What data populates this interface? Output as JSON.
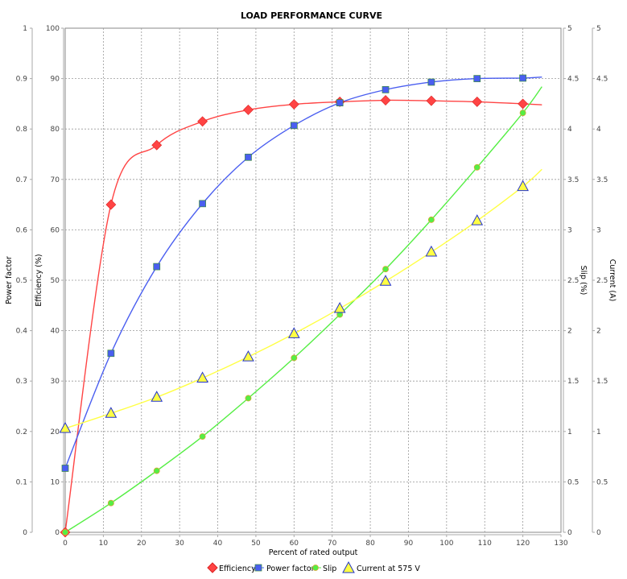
{
  "chart_data": {
    "type": "line",
    "title": "LOAD PERFORMANCE CURVE",
    "xlabel": "Percent of rated output",
    "xlim": [
      0,
      130
    ],
    "xticks": [
      0,
      10,
      20,
      30,
      40,
      50,
      60,
      70,
      80,
      90,
      100,
      110,
      120,
      130
    ],
    "grid": true,
    "legend_position": "bottom",
    "axes": {
      "power_factor": {
        "label": "Power factor",
        "side": "left-outer",
        "range": [
          0,
          1
        ],
        "ticks": [
          "0",
          "0.1",
          "0.2",
          "0.3",
          "0.4",
          "0.5",
          "0.6",
          "0.7",
          "0.8",
          "0.9",
          "1"
        ]
      },
      "efficiency": {
        "label": "Efficiency (%)",
        "side": "left-inner",
        "range": [
          0,
          100
        ],
        "ticks": [
          "0",
          "10",
          "20",
          "30",
          "40",
          "50",
          "60",
          "70",
          "80",
          "90",
          "100"
        ]
      },
      "slip": {
        "label": "Slip (%)",
        "side": "right-inner",
        "range": [
          0,
          5
        ],
        "ticks": [
          "0",
          "0.5",
          "1",
          "1.5",
          "2",
          "2.5",
          "3",
          "3.5",
          "4",
          "4.5",
          "5"
        ]
      },
      "current": {
        "label": "Current (A)",
        "side": "right-outer",
        "range": [
          0,
          5
        ],
        "ticks": [
          "0",
          "0.5",
          "1",
          "1.5",
          "2",
          "2.5",
          "3",
          "3.5",
          "4",
          "4.5",
          "5"
        ]
      }
    },
    "x": [
      0,
      12,
      24,
      36,
      48,
      60,
      72,
      84,
      96,
      108,
      120
    ],
    "series": [
      {
        "name": "Efficiency",
        "axis": "efficiency",
        "color": "#ff4444",
        "marker": "diamond",
        "values": [
          0,
          65.0,
          76.8,
          81.5,
          83.8,
          84.9,
          85.4,
          85.7,
          85.6,
          85.4,
          85.0
        ],
        "curve_end": {
          "x": 125,
          "y": 84.8
        }
      },
      {
        "name": "Power factor",
        "axis": "power_factor",
        "color": "#4a5ef0",
        "marker": "square",
        "values": [
          0.127,
          0.355,
          0.527,
          0.652,
          0.744,
          0.807,
          0.852,
          0.878,
          0.893,
          0.9,
          0.901
        ],
        "curve_end": {
          "x": 125,
          "y": 0.903
        }
      },
      {
        "name": "Slip",
        "axis": "slip",
        "color": "#55ee44",
        "marker": "circle",
        "values": [
          0,
          0.29,
          0.61,
          0.95,
          1.33,
          1.73,
          2.16,
          2.61,
          3.1,
          3.62,
          4.16
        ],
        "curve_end": {
          "x": 125,
          "y": 4.42
        }
      },
      {
        "name": "Current at 575 V",
        "axis": "current",
        "color": "#ffff44",
        "marker": "triangle",
        "values": [
          1.03,
          1.18,
          1.34,
          1.53,
          1.74,
          1.97,
          2.22,
          2.49,
          2.78,
          3.09,
          3.43
        ],
        "curve_end": {
          "x": 125,
          "y": 3.6
        }
      }
    ]
  },
  "legend": {
    "items": [
      {
        "label": "Efficiency"
      },
      {
        "label": "Power factor"
      },
      {
        "label": "Slip"
      },
      {
        "label": "Current at 575 V"
      }
    ]
  }
}
